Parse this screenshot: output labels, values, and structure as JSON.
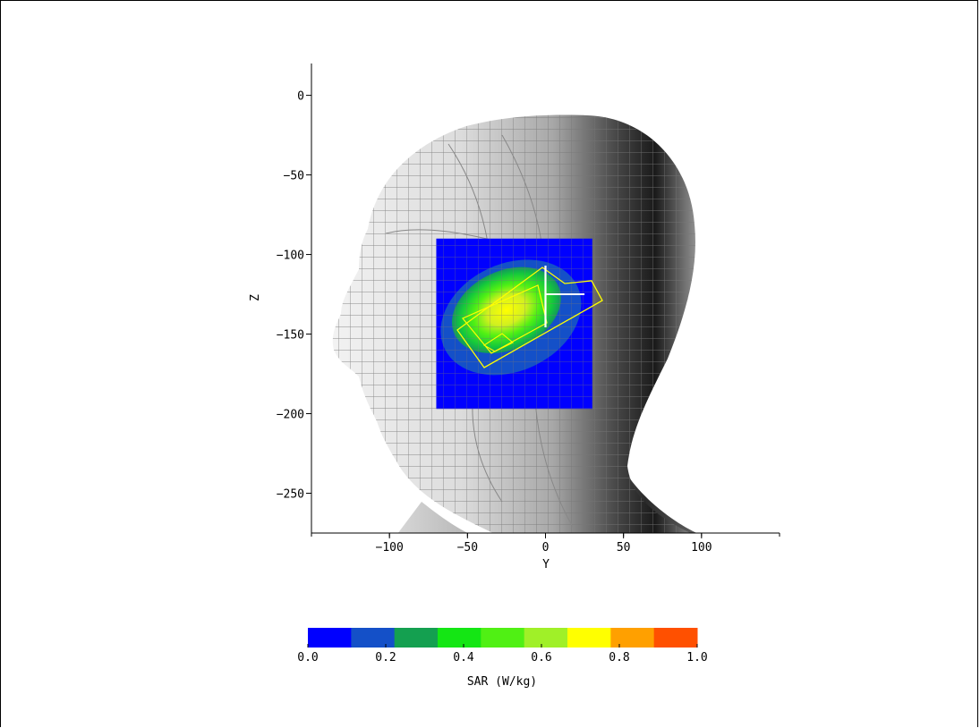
{
  "chart_data": {
    "type": "heatmap",
    "title": "",
    "xlabel": "Y",
    "ylabel": "Z",
    "xlim": [
      -150,
      150
    ],
    "ylim": [
      -275,
      20
    ],
    "x_ticks": [
      -100,
      -50,
      0,
      50,
      100
    ],
    "x_tick_labels": [
      "−100",
      "−50",
      "0",
      "50",
      "100"
    ],
    "y_ticks": [
      0,
      -50,
      -100,
      -150,
      -200,
      -250
    ],
    "y_tick_labels": [
      "0",
      "−50",
      "−100",
      "−150",
      "−200",
      "−250"
    ],
    "scan_area": {
      "y_range": [
        -70,
        30
      ],
      "z_range": [
        -90,
        -197
      ]
    },
    "peak": {
      "y": -25,
      "z": -135
    },
    "colorbar": {
      "label": "SAR (W/kg)",
      "range": [
        0.0,
        1.0
      ],
      "tick_labels": [
        "0.0",
        "0.2",
        "0.4",
        "0.6",
        "0.8",
        "1.0"
      ],
      "colors": [
        "#0000ff",
        "#1450c8",
        "#14a050",
        "#14e614",
        "#50f014",
        "#a0f028",
        "#ffff00",
        "#ffa000",
        "#ff5000"
      ]
    },
    "grid": false,
    "legend": "colorbar-bottom"
  }
}
